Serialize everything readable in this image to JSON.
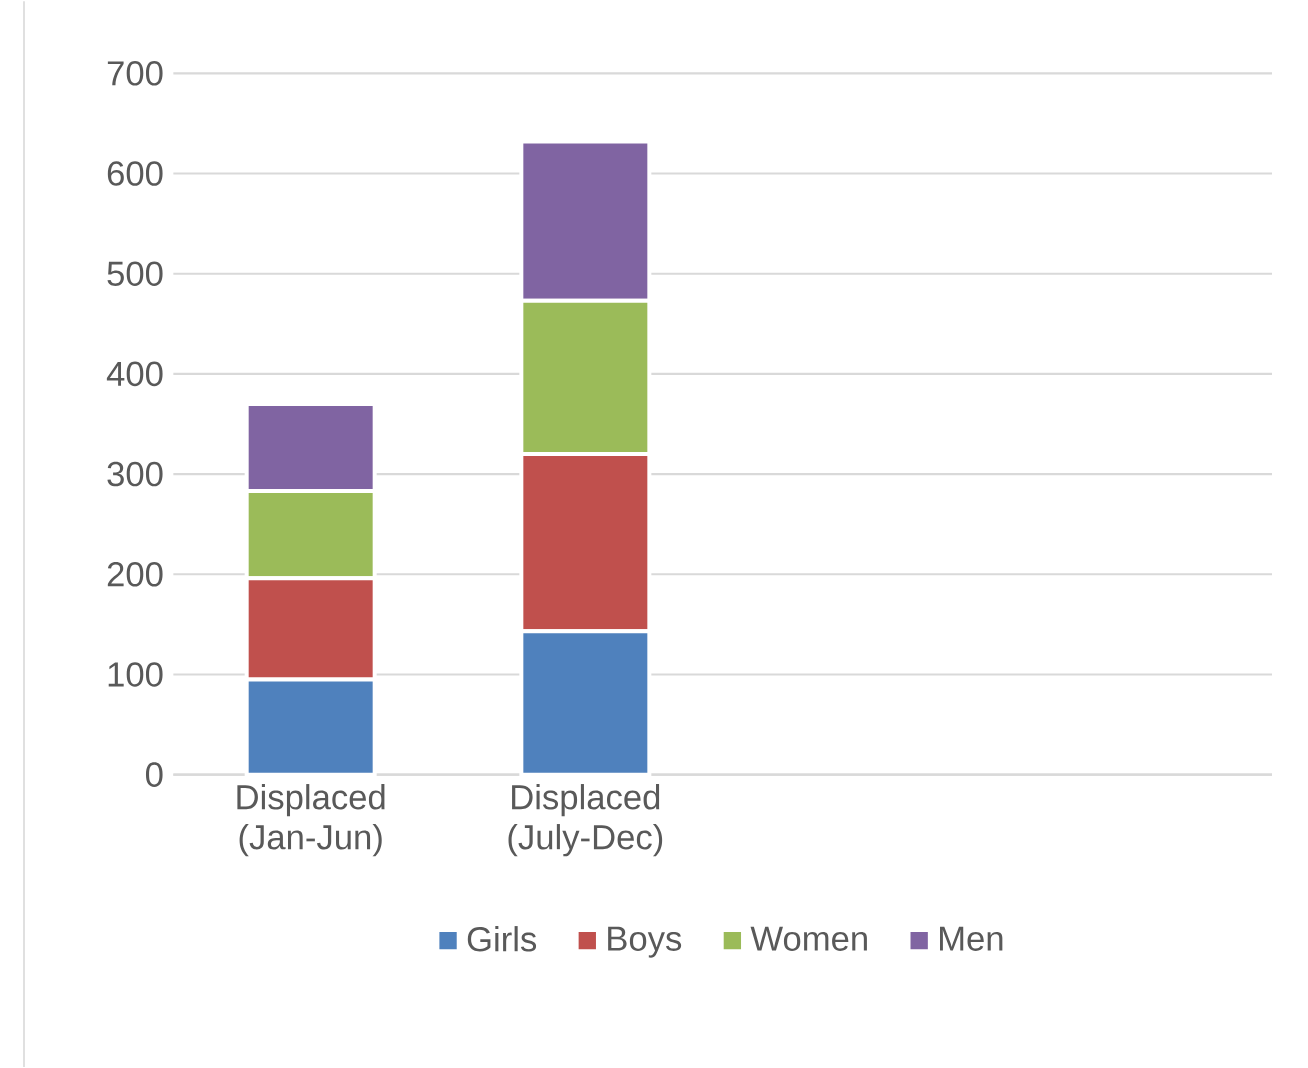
{
  "chart_data": {
    "type": "bar",
    "stacked": true,
    "categories": [
      "Displaced (Jan-Jun)",
      "Displaced (July-Dec)",
      null,
      null
    ],
    "series": [
      {
        "name": "Girls",
        "color": "#4f81bd",
        "values": [
          95,
          143,
          null,
          null
        ]
      },
      {
        "name": "Boys",
        "color": "#c0504d",
        "values": [
          101,
          177,
          null,
          null
        ]
      },
      {
        "name": "Women",
        "color": "#9bbb59",
        "values": [
          87,
          153,
          null,
          null
        ]
      },
      {
        "name": "Men",
        "color": "#8064a2",
        "values": [
          87,
          159,
          null,
          null
        ]
      }
    ],
    "ylim": [
      0,
      700
    ],
    "yticks": [
      0,
      100,
      200,
      300,
      400,
      500,
      600,
      700
    ],
    "grid": "y",
    "legend": "bottom"
  }
}
